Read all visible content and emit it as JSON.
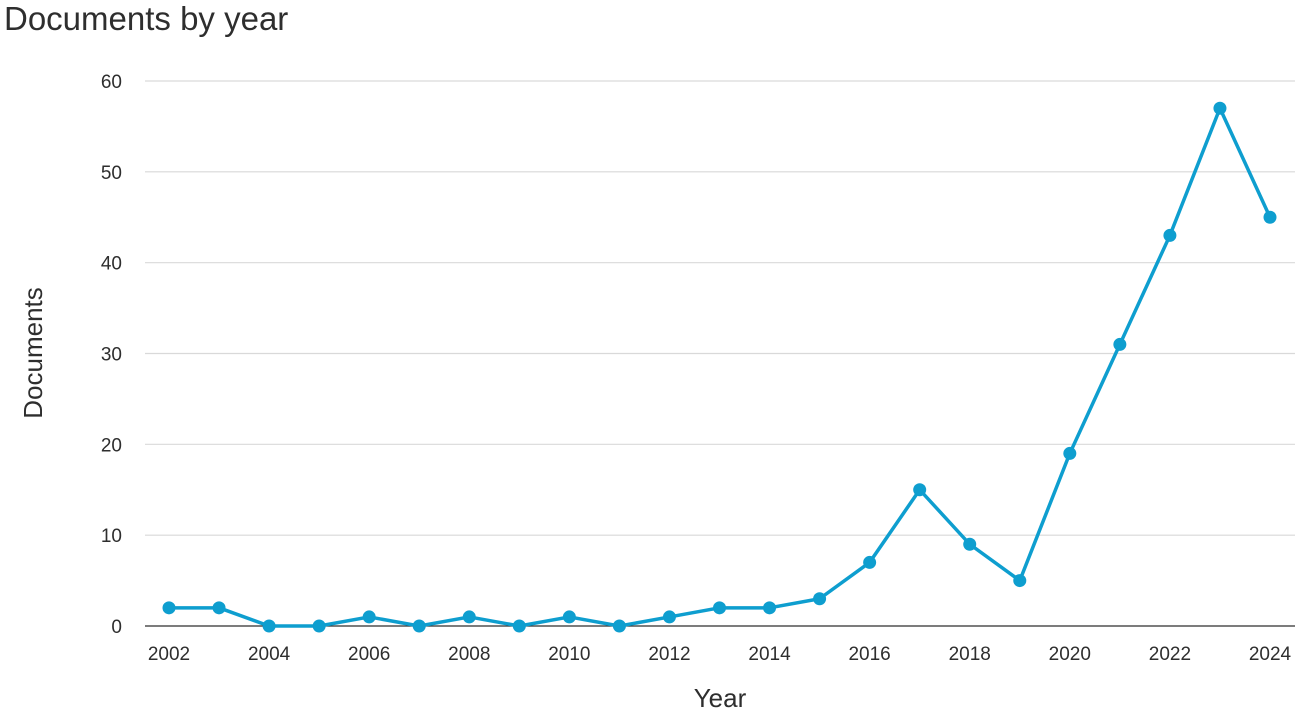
{
  "chart_data": {
    "type": "line",
    "title": "Documents by year",
    "xlabel": "Year",
    "ylabel": "Documents",
    "x": [
      2002,
      2003,
      2004,
      2005,
      2006,
      2007,
      2008,
      2009,
      2010,
      2011,
      2012,
      2013,
      2014,
      2015,
      2016,
      2017,
      2018,
      2019,
      2020,
      2021,
      2022,
      2023,
      2024
    ],
    "series": [
      {
        "values": [
          2,
          2,
          0,
          0,
          1,
          0,
          1,
          0,
          1,
          0,
          1,
          2,
          2,
          3,
          7,
          15,
          9,
          5,
          19,
          31,
          43,
          57,
          45
        ]
      }
    ],
    "xlim": [
      2002,
      2024
    ],
    "ylim": [
      0,
      60
    ],
    "x_ticks": [
      "2002",
      "2004",
      "2006",
      "2008",
      "2010",
      "2012",
      "2014",
      "2016",
      "2018",
      "2020",
      "2022",
      "2024"
    ],
    "y_ticks": [
      "0",
      "10",
      "20",
      "30",
      "40",
      "50",
      "60"
    ],
    "grid": "horizontal",
    "legend": "none",
    "line_color": "#0e9ecf",
    "grid_color": "#d9d9d9",
    "baseline_color": "#2e2e2e"
  }
}
